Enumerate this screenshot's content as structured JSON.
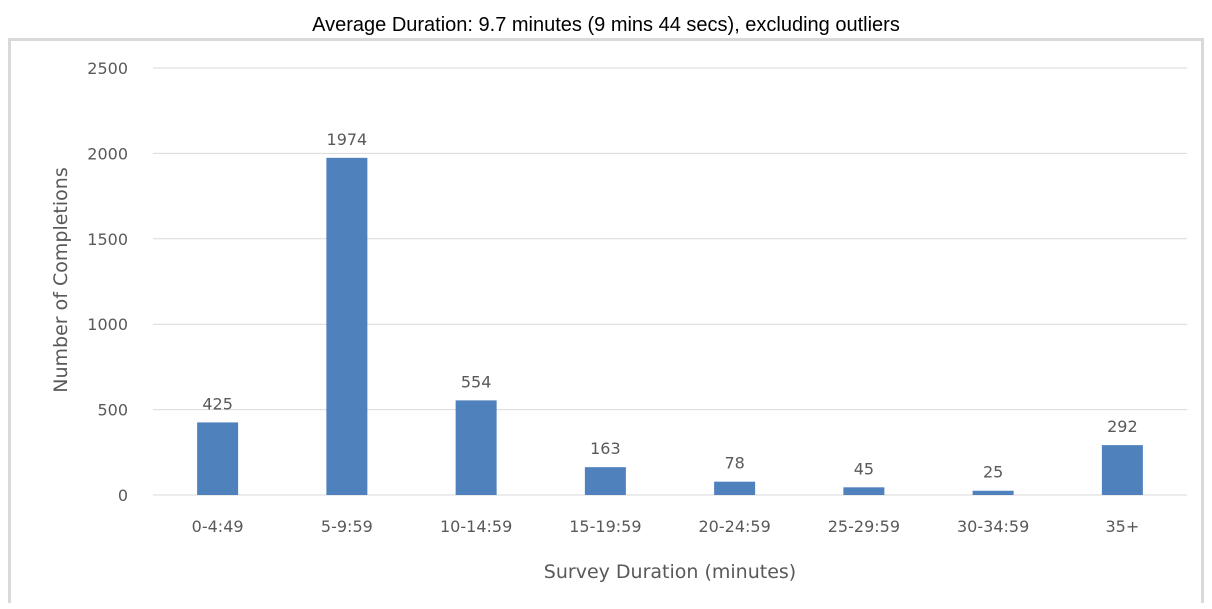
{
  "chart_data": {
    "type": "bar",
    "title": "Average Duration: 9.7 minutes (9 mins 44 secs), excluding outliers",
    "xlabel": "Survey Duration (minutes)",
    "ylabel": "Number of Completions",
    "categories": [
      "0-4:49",
      "5-9:59",
      "10-14:59",
      "15-19:59",
      "20-24:59",
      "25-29:59",
      "30-34:59",
      "35+"
    ],
    "values": [
      425,
      1974,
      554,
      163,
      78,
      45,
      25,
      292
    ],
    "ylim": [
      0,
      2500
    ],
    "yticks": [
      0,
      500,
      1000,
      1500,
      2000,
      2500
    ],
    "grid": true,
    "legend": "none",
    "bar_color": "#4f81bd",
    "grid_color": "#d9d9d9",
    "text_color": "#595959"
  }
}
